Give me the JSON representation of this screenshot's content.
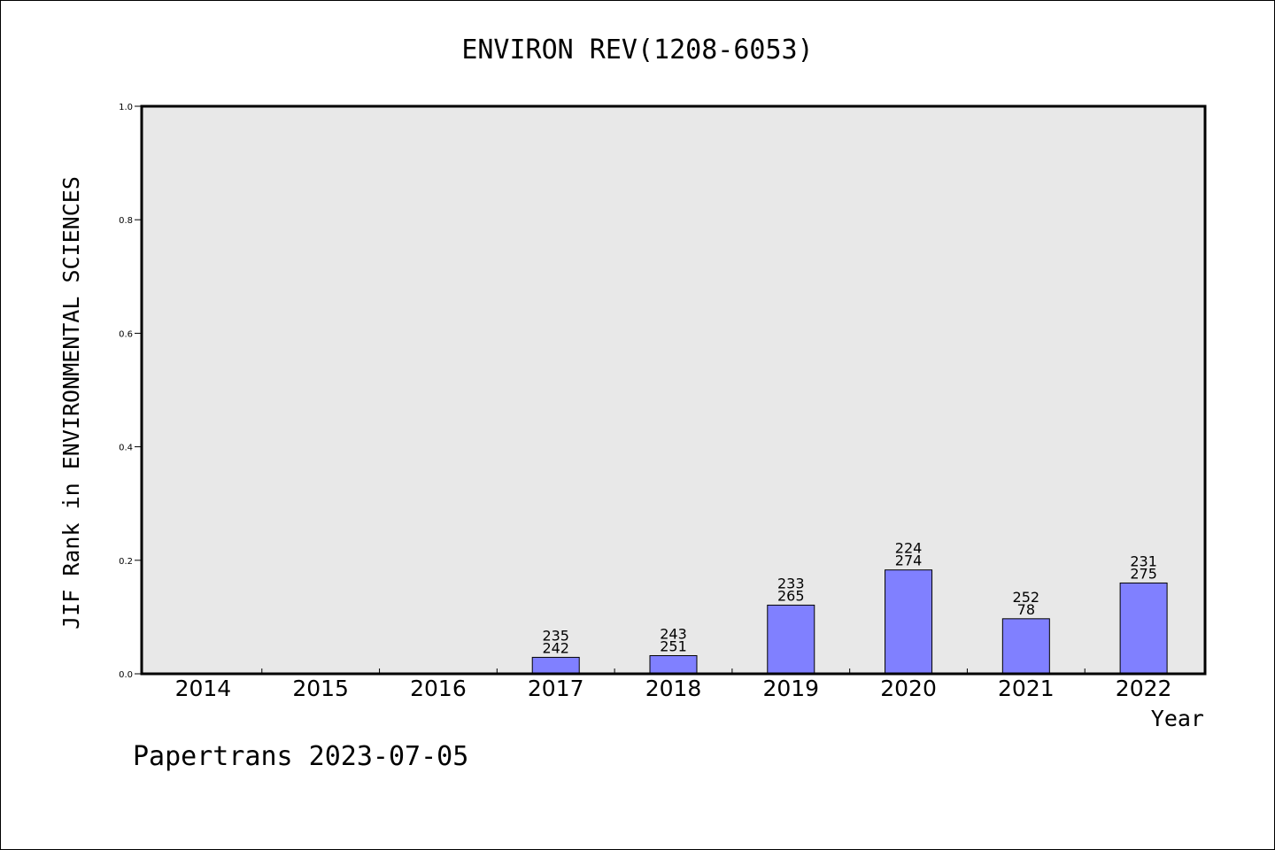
{
  "chart_data": {
    "type": "bar",
    "title": "ENVIRON REV(1208-6053)",
    "ylabel": "JIF Rank in ENVIRONMENTAL SCIENCES",
    "xlabel": "Year",
    "categories": [
      "2014",
      "2015",
      "2016",
      "2017",
      "2018",
      "2019",
      "2020",
      "2021",
      "2022"
    ],
    "values": [
      null,
      null,
      null,
      0.029,
      0.032,
      0.121,
      0.183,
      0.097,
      0.16
    ],
    "labels_top": [
      "",
      "",
      "",
      "235",
      "243",
      "233",
      "224",
      "252",
      "231"
    ],
    "labels_bottom": [
      "",
      "",
      "",
      "242",
      "251",
      "265",
      "274",
      "78",
      "275"
    ],
    "ylim": [
      0,
      1.0
    ],
    "yticks": [
      "0.0",
      "0.2",
      "0.4",
      "0.6",
      "0.8",
      "1.0"
    ],
    "grid": false,
    "bar_color": "#8080ff",
    "plot_background": "#e8e8e8"
  },
  "footer": "Papertrans 2023-07-05"
}
